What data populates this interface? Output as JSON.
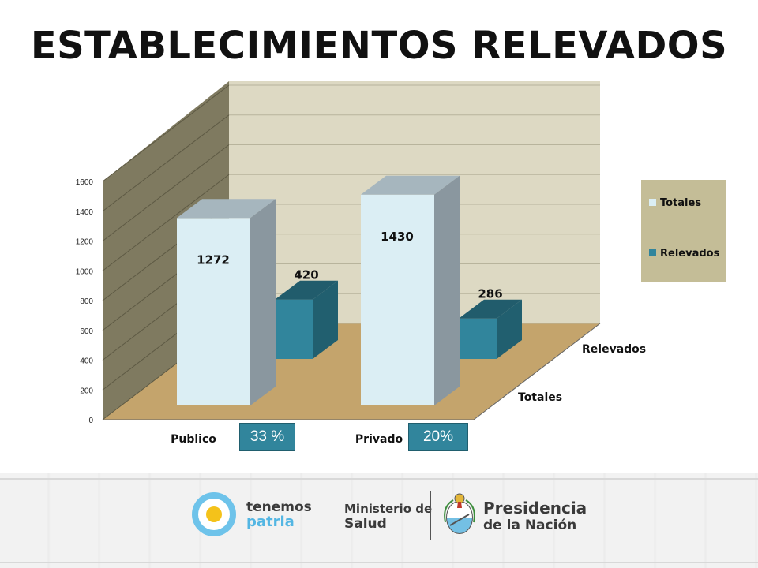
{
  "title": "ESTABLECIMIENTOS  RELEVADOS",
  "chart_data": {
    "type": "bar",
    "categories": [
      "Publico",
      "Privado"
    ],
    "series": [
      {
        "name": "Totales",
        "values": [
          1272,
          1430
        ]
      },
      {
        "name": "Relevados",
        "values": [
          420,
          286
        ]
      }
    ],
    "depth_labels": [
      "Totales",
      "Relevados"
    ],
    "ylim": [
      0,
      1600
    ],
    "yticks": [
      0,
      200,
      400,
      600,
      800,
      1000,
      1200,
      1400,
      1600
    ],
    "grid": true,
    "legend_position": "right",
    "colors": {
      "Totales": "#dbeef4",
      "Relevados": "#31859c",
      "back_wall": "#ddd9c3",
      "side_wall": "#7f7a60",
      "floor": "#c4a46c",
      "legend_bg": "#c4bd97"
    }
  },
  "percent_boxes": [
    {
      "category": "Publico",
      "label": "33 %"
    },
    {
      "category": "Privado",
      "label": "20%"
    }
  ],
  "footer": {
    "brand_line1": "tenemos",
    "brand_line2": "patria",
    "ministerio_line1": "Ministerio de",
    "ministerio_line2": "Salud",
    "presidencia_line1": "Presidencia",
    "presidencia_line2": "de la Nación"
  }
}
